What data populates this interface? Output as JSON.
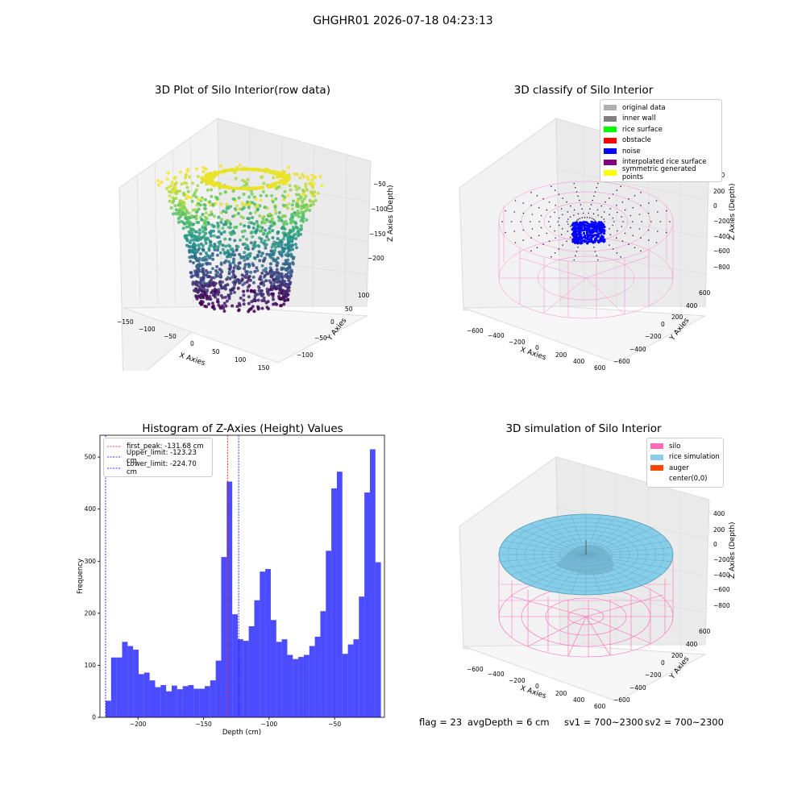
{
  "suptitle": "GHGHR01 2026-07-18 04:23:13",
  "status": {
    "flag": "flag = 23",
    "avg": "avgDepth = 6 cm",
    "sv1": "sv1 = 700~2300",
    "sv2": "sv2 = 700~2300"
  },
  "chart_data": [
    {
      "type": "scatter3d",
      "title": "3D Plot of Silo Interior(row data)",
      "xlabel": "X Axies",
      "ylabel": "Y Axies",
      "zlabel": "Z Axies (Depth)",
      "xticks": [
        "−150",
        "−100",
        "−50",
        "0",
        "50",
        "100",
        "150"
      ],
      "yticks": [
        "100",
        "50",
        "0",
        "−50",
        "−100"
      ],
      "zticks": [
        "−50",
        "−100",
        "−150",
        "−200"
      ],
      "colormap": "viridis"
    },
    {
      "type": "scatter3d",
      "title": "3D classify of Silo Interior",
      "xlabel": "X Axies",
      "ylabel": "Y Axies",
      "zlabel": "Z Axies (Depth)",
      "xticks": [
        "−600",
        "−400",
        "−200",
        "0",
        "200",
        "400",
        "600"
      ],
      "yticks": [
        "600",
        "400",
        "200",
        "0",
        "−200",
        "−400",
        "−600"
      ],
      "zticks": [
        "400",
        "200",
        "0",
        "−200",
        "−400",
        "−600",
        "−800"
      ],
      "legend": [
        {
          "label": "original data",
          "color": "#b0b0b0"
        },
        {
          "label": "inner wall",
          "color": "#808080"
        },
        {
          "label": "rice surface",
          "color": "#00ff00"
        },
        {
          "label": "obstacle",
          "color": "#ff0000"
        },
        {
          "label": "noise",
          "color": "#0000ff"
        },
        {
          "label": "interpolated rice surface",
          "color": "#800080"
        },
        {
          "label": "symmetric generated points",
          "color": "#ffff00"
        }
      ]
    },
    {
      "type": "bar",
      "title": "Histogram of Z-Axies (Height) Values",
      "xlabel": "Depth (cm)",
      "ylabel": "Frequency",
      "xlim": [
        -229,
        -12
      ],
      "ylim": [
        0,
        542
      ],
      "xticks": [
        -200,
        -150,
        -100,
        -50
      ],
      "xtick_labels": [
        "−200",
        "−150",
        "−100",
        "−50"
      ],
      "yticks": [
        0,
        100,
        200,
        300,
        400,
        500
      ],
      "bin_start": -224.7,
      "bin_width": 4.2,
      "values": [
        32,
        115,
        115,
        145,
        137,
        130,
        83,
        86,
        71,
        58,
        62,
        50,
        61,
        54,
        60,
        62,
        55,
        55,
        60,
        71,
        109,
        308,
        453,
        198,
        150,
        147,
        175,
        225,
        280,
        285,
        187,
        145,
        150,
        120,
        112,
        116,
        120,
        137,
        155,
        204,
        320,
        440,
        472,
        122,
        140,
        150,
        232,
        432,
        515,
        298
      ],
      "color": "#0000ff",
      "lines": [
        {
          "label": "first_peak: -131.68 cm",
          "x": -131.68,
          "color": "#ff0000"
        },
        {
          "label": "Upper_limit: -123.23 cm",
          "x": -123.23,
          "color": "#0000ff"
        },
        {
          "label": "Lower_limit: -224.70 cm",
          "x": -224.7,
          "color": "#0000ff"
        }
      ]
    },
    {
      "type": "surface3d",
      "title": "3D simulation of Silo Interior",
      "xlabel": "X Axies",
      "ylabel": "Y Axies",
      "zlabel": "Z Axies (Depth)",
      "xticks": [
        "−600",
        "−400",
        "−200",
        "0",
        "200",
        "400",
        "600"
      ],
      "yticks": [
        "600",
        "400",
        "200",
        "0",
        "−200",
        "−400",
        "−600"
      ],
      "zticks": [
        "400",
        "200",
        "0",
        "−200",
        "−400",
        "−600",
        "−800"
      ],
      "legend": [
        {
          "label": "silo",
          "color": "#ff69b4"
        },
        {
          "label": "rice simulation",
          "color": "#87ceeb"
        },
        {
          "label": "auger",
          "color": "#ff4500"
        },
        {
          "label": "center(0,0)",
          "color": "#ffffff"
        }
      ]
    }
  ]
}
